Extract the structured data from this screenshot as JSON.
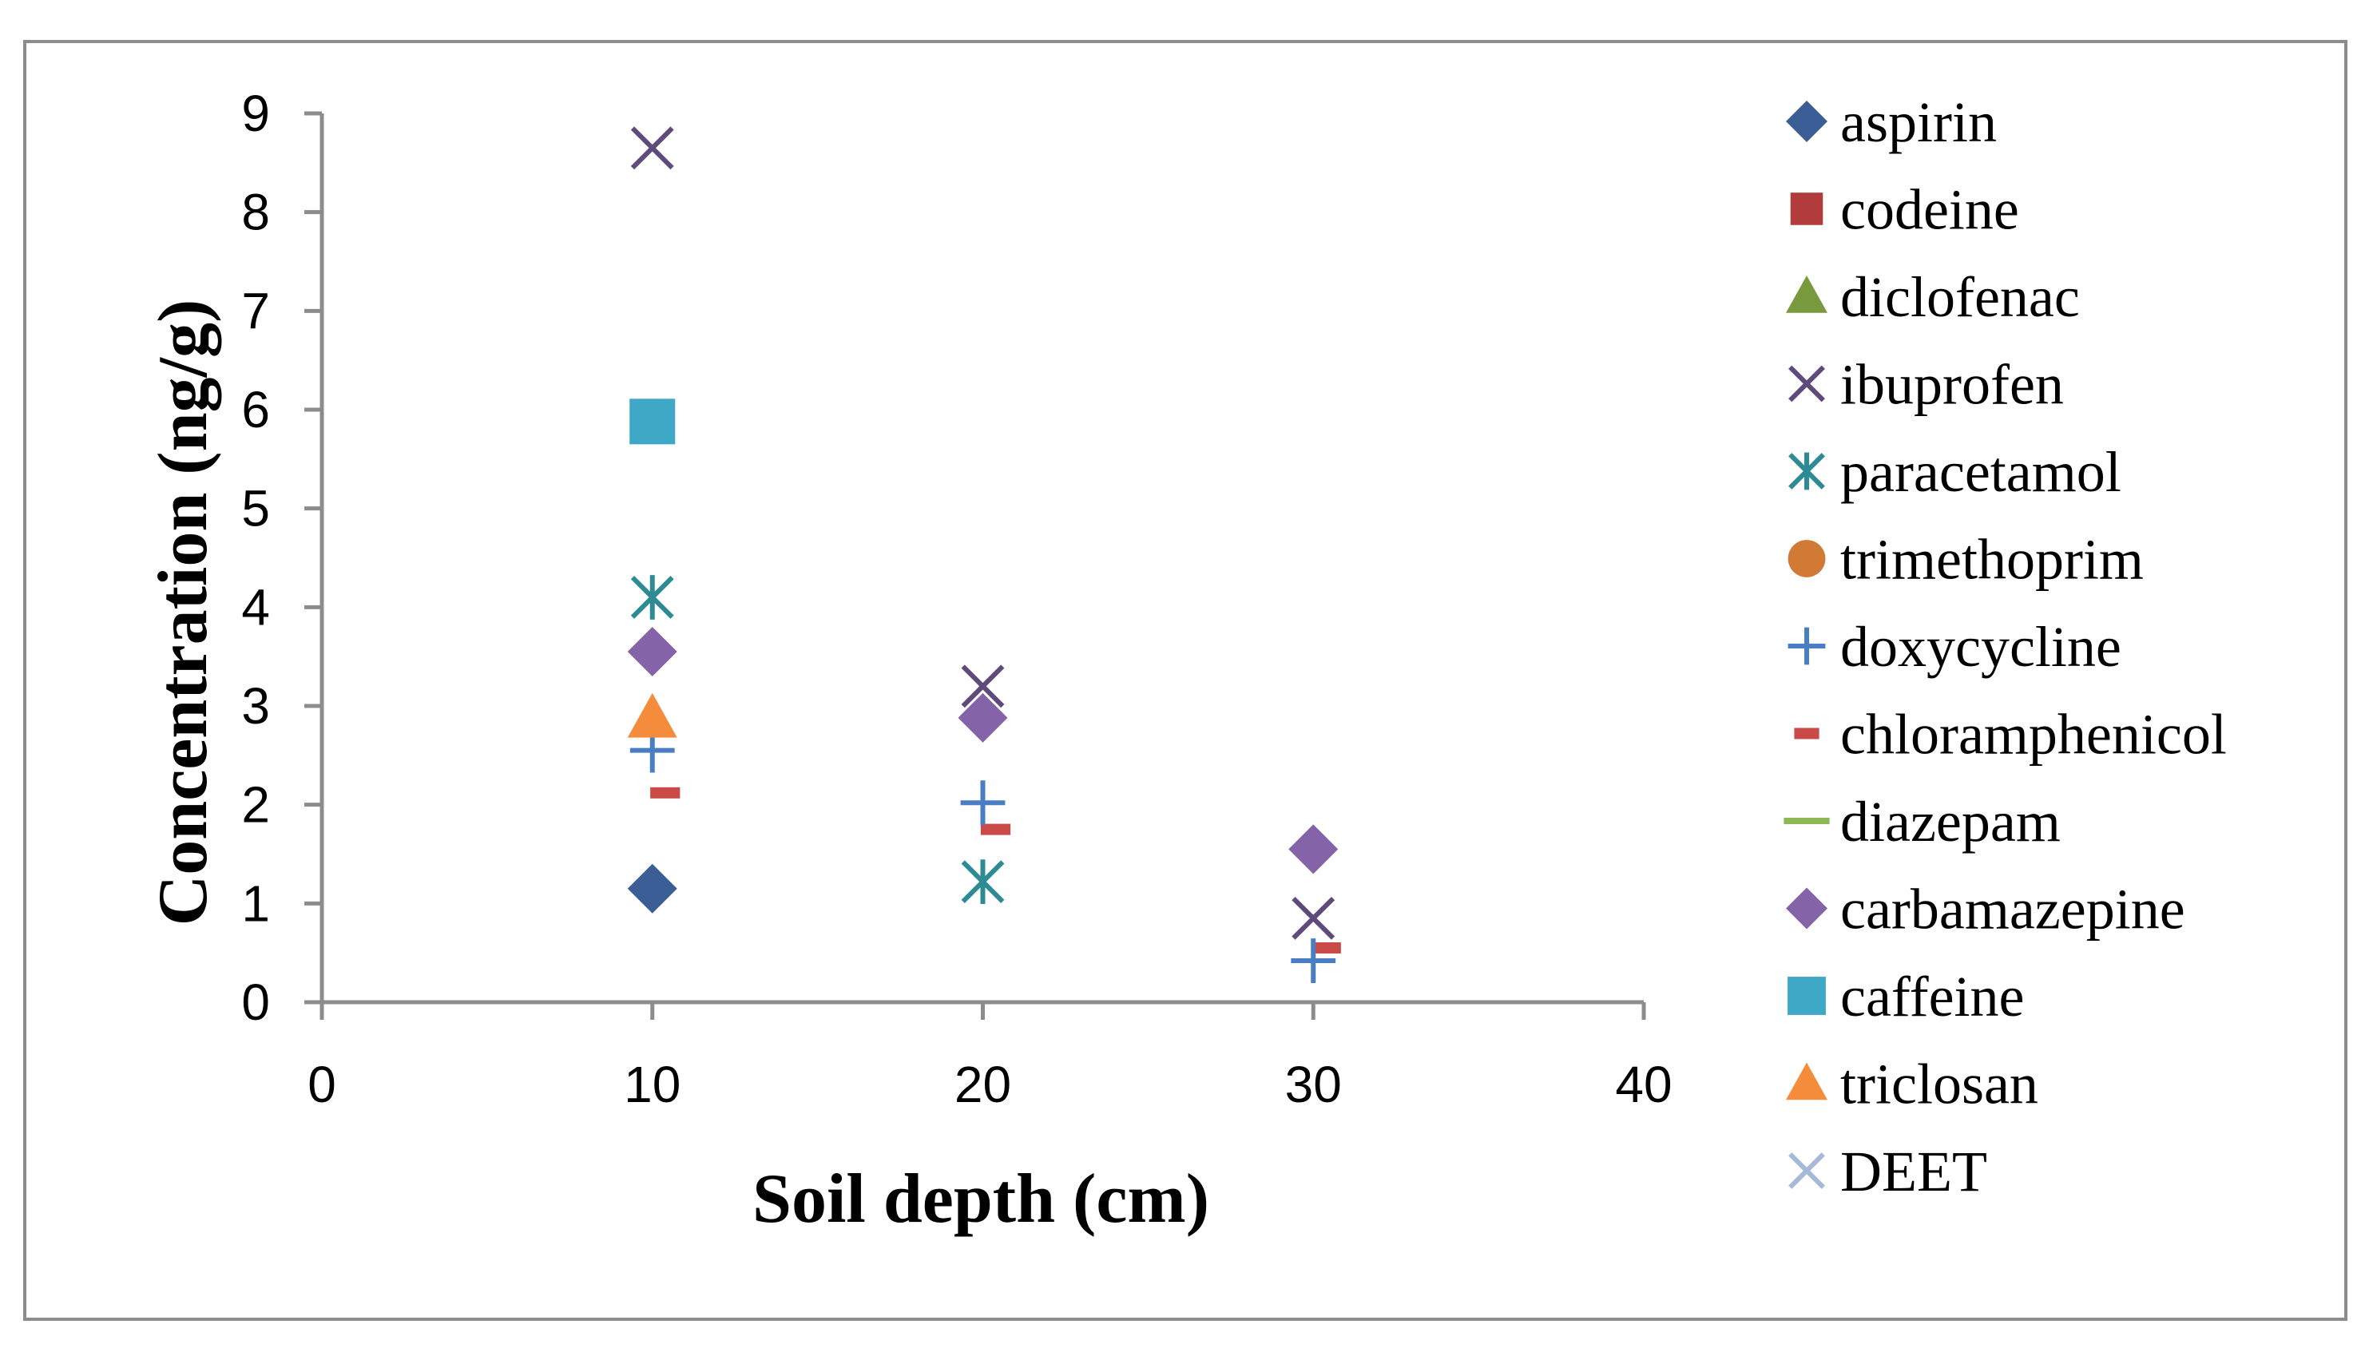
{
  "chart_data": {
    "type": "scatter",
    "title": "",
    "xlabel": "Soil depth (cm)",
    "ylabel": "Concentration (ng/g)",
    "xlim": [
      0,
      40
    ],
    "ylim": [
      0,
      9
    ],
    "xticks": [
      0,
      10,
      20,
      30,
      40
    ],
    "yticks": [
      0,
      1,
      2,
      3,
      4,
      5,
      6,
      7,
      8,
      9
    ],
    "grid": false,
    "legend_position": "right",
    "series": [
      {
        "name": "aspirin",
        "marker": "diamond",
        "color": "#3B5E96",
        "points": [
          {
            "x": 10,
            "y": 1.15
          }
        ]
      },
      {
        "name": "codeine",
        "marker": "square-small",
        "color": "#B23C3C",
        "points": []
      },
      {
        "name": "diclofenac",
        "marker": "triangle",
        "color": "#789A3C",
        "points": []
      },
      {
        "name": "ibuprofen",
        "marker": "x",
        "color": "#5E4B7C",
        "points": [
          {
            "x": 10,
            "y": 8.65
          },
          {
            "x": 20,
            "y": 3.2
          },
          {
            "x": 30,
            "y": 0.85
          }
        ]
      },
      {
        "name": "paracetamol",
        "marker": "star",
        "color": "#2E8B94",
        "points": [
          {
            "x": 10,
            "y": 4.1
          },
          {
            "x": 20,
            "y": 1.22
          }
        ]
      },
      {
        "name": "trimethoprim",
        "marker": "circle",
        "color": "#D07A35",
        "points": []
      },
      {
        "name": "doxycycline",
        "marker": "plus",
        "color": "#4A7EC4",
        "points": [
          {
            "x": 10,
            "y": 2.55
          },
          {
            "x": 20,
            "y": 2.02
          },
          {
            "x": 30,
            "y": 0.42
          }
        ]
      },
      {
        "name": "chloramphenicol",
        "marker": "dash",
        "color": "#C94A46",
        "points": [
          {
            "x": 10,
            "y": 2.12
          },
          {
            "x": 20,
            "y": 1.75
          },
          {
            "x": 30,
            "y": 0.55
          }
        ]
      },
      {
        "name": "diazepam",
        "marker": "line",
        "color": "#8DB654",
        "points": []
      },
      {
        "name": "carbamazepine",
        "marker": "diamond",
        "color": "#8463A8",
        "points": [
          {
            "x": 10,
            "y": 3.55
          },
          {
            "x": 20,
            "y": 2.88
          },
          {
            "x": 30,
            "y": 1.55
          }
        ]
      },
      {
        "name": "caffeine",
        "marker": "square",
        "color": "#3FA8C6",
        "points": [
          {
            "x": 10,
            "y": 5.88
          }
        ]
      },
      {
        "name": "triclosan",
        "marker": "triangle",
        "color": "#F48C3C",
        "points": [
          {
            "x": 10,
            "y": 2.88
          }
        ]
      },
      {
        "name": "DEET",
        "marker": "x",
        "color": "#A7B9D8",
        "points": []
      }
    ]
  }
}
